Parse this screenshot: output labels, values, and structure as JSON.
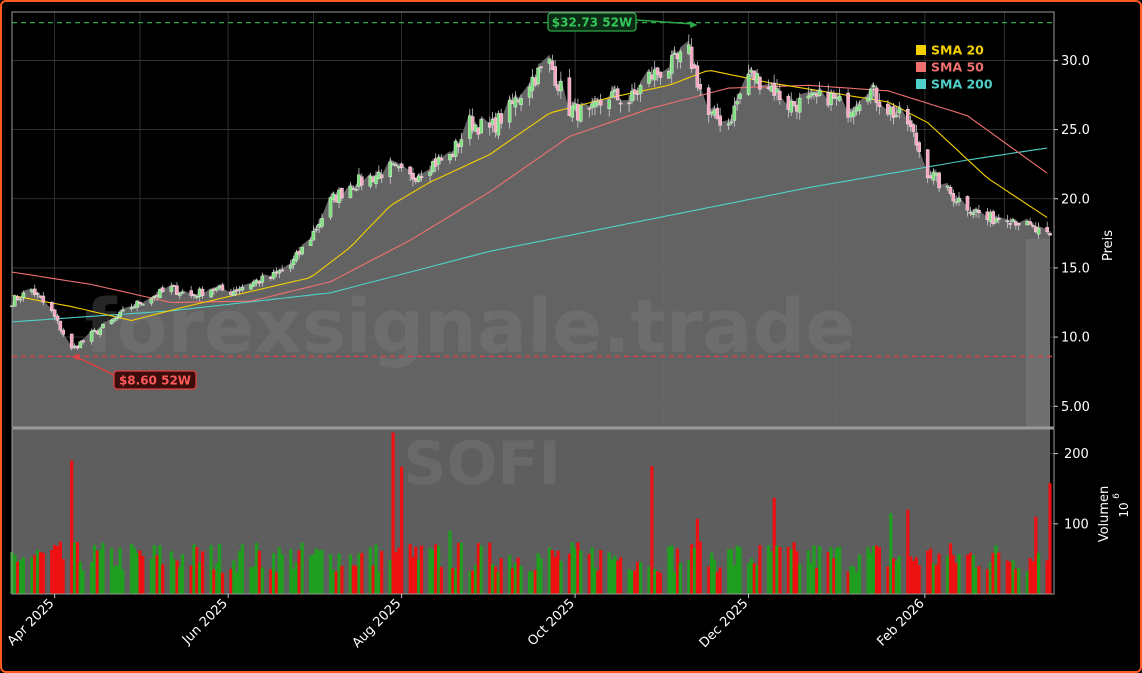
{
  "chart_data": {
    "type": "candlestick",
    "ticker": "SOFI",
    "watermark": "forexsignale.trade",
    "ylabel_price": "Preis",
    "ylabel_volume": "Volumen",
    "volume_exponent_label": "10",
    "volume_exponent_sup": "6",
    "price_yticks": [
      "5.00",
      "10.0",
      "15.0",
      "20.0",
      "25.0",
      "30.0"
    ],
    "price_ytick_values": [
      5,
      10,
      15,
      20,
      25,
      30
    ],
    "price_ylim": [
      3.5,
      33.5
    ],
    "volume_yticks": [
      "100",
      "200"
    ],
    "volume_ytick_values": [
      100,
      200
    ],
    "volume_ylim": [
      0,
      235
    ],
    "x_tick_labels": [
      "Apr 2025",
      "Jun 2025",
      "Aug 2025",
      "Oct 2025",
      "Dec 2025",
      "Feb 2026"
    ],
    "x_tick_dates": [
      "2025-04-01",
      "2025-06-01",
      "2025-08-01",
      "2025-10-01",
      "2025-12-01",
      "2026-02-01"
    ],
    "date_range": [
      "2025-03-17",
      "2026-03-17"
    ],
    "legend": [
      {
        "label": "SMA 20",
        "color": "#f5d000"
      },
      {
        "label": "SMA 50",
        "color": "#f07070"
      },
      {
        "label": "SMA 200",
        "color": "#4fd0c8"
      }
    ],
    "high_52w": {
      "label": "$32.73 52W",
      "value": 32.73,
      "date": "2025-11-13",
      "color": "#2ea84a"
    },
    "low_52w": {
      "label": "$8.60 52W",
      "value": 8.6,
      "date": "2025-04-07",
      "color": "#e04040"
    },
    "last_price": 17.1,
    "close_points": [
      [
        "2025-03-17",
        12.6
      ],
      [
        "2025-03-24",
        13.4
      ],
      [
        "2025-03-31",
        11.8
      ],
      [
        "2025-04-07",
        9.1
      ],
      [
        "2025-04-14",
        10.2
      ],
      [
        "2025-04-21",
        11.1
      ],
      [
        "2025-04-28",
        12.2
      ],
      [
        "2025-05-05",
        12.9
      ],
      [
        "2025-05-12",
        13.5
      ],
      [
        "2025-05-19",
        13.0
      ],
      [
        "2025-05-26",
        13.5
      ],
      [
        "2025-06-02",
        13.3
      ],
      [
        "2025-06-09",
        13.9
      ],
      [
        "2025-06-16",
        14.3
      ],
      [
        "2025-06-23",
        15.2
      ],
      [
        "2025-06-30",
        17.2
      ],
      [
        "2025-07-07",
        19.8
      ],
      [
        "2025-07-14",
        21.0
      ],
      [
        "2025-07-21",
        21.5
      ],
      [
        "2025-07-28",
        22.2
      ],
      [
        "2025-08-04",
        21.5
      ],
      [
        "2025-08-11",
        22.5
      ],
      [
        "2025-08-18",
        23.0
      ],
      [
        "2025-08-25",
        25.5
      ],
      [
        "2025-09-01",
        25.0
      ],
      [
        "2025-09-08",
        26.5
      ],
      [
        "2025-09-15",
        28.5
      ],
      [
        "2025-09-22",
        29.8
      ],
      [
        "2025-09-29",
        26.5
      ],
      [
        "2025-10-06",
        26.0
      ],
      [
        "2025-10-13",
        27.5
      ],
      [
        "2025-10-20",
        27.0
      ],
      [
        "2025-10-27",
        28.8
      ],
      [
        "2025-11-03",
        29.5
      ],
      [
        "2025-11-10",
        30.5
      ],
      [
        "2025-11-17",
        26.0
      ],
      [
        "2025-11-24",
        25.5
      ],
      [
        "2025-12-01",
        29.0
      ],
      [
        "2025-12-08",
        28.3
      ],
      [
        "2025-12-15",
        26.8
      ],
      [
        "2025-12-22",
        27.0
      ],
      [
        "2025-12-29",
        27.4
      ],
      [
        "2026-01-05",
        26.5
      ],
      [
        "2026-01-12",
        28.0
      ],
      [
        "2026-01-19",
        26.5
      ],
      [
        "2026-01-26",
        25.5
      ],
      [
        "2026-02-02",
        22.0
      ],
      [
        "2026-02-09",
        20.5
      ],
      [
        "2026-02-16",
        19.5
      ],
      [
        "2026-02-23",
        18.5
      ],
      [
        "2026-03-02",
        18.8
      ],
      [
        "2026-03-09",
        18.0
      ],
      [
        "2026-03-17",
        17.1
      ]
    ],
    "sma20_points": [
      [
        "2025-03-17",
        13.0
      ],
      [
        "2025-04-07",
        12.2
      ],
      [
        "2025-04-28",
        11.2
      ],
      [
        "2025-05-19",
        12.3
      ],
      [
        "2025-06-09",
        13.3
      ],
      [
        "2025-06-30",
        14.3
      ],
      [
        "2025-07-14",
        16.5
      ],
      [
        "2025-07-28",
        19.5
      ],
      [
        "2025-08-11",
        21.2
      ],
      [
        "2025-09-01",
        23.2
      ],
      [
        "2025-09-22",
        26.2
      ],
      [
        "2025-10-13",
        27.3
      ],
      [
        "2025-11-03",
        28.2
      ],
      [
        "2025-11-17",
        29.3
      ],
      [
        "2025-12-08",
        28.4
      ],
      [
        "2025-12-29",
        27.7
      ],
      [
        "2026-01-19",
        27.0
      ],
      [
        "2026-02-02",
        25.5
      ],
      [
        "2026-02-23",
        21.5
      ],
      [
        "2026-03-17",
        18.5
      ]
    ],
    "sma50_points": [
      [
        "2025-03-17",
        14.7
      ],
      [
        "2025-04-14",
        13.8
      ],
      [
        "2025-05-12",
        12.5
      ],
      [
        "2025-06-09",
        12.6
      ],
      [
        "2025-07-07",
        14.0
      ],
      [
        "2025-08-04",
        17.0
      ],
      [
        "2025-09-01",
        20.5
      ],
      [
        "2025-09-29",
        24.5
      ],
      [
        "2025-10-27",
        26.5
      ],
      [
        "2025-11-24",
        28.0
      ],
      [
        "2025-12-22",
        28.2
      ],
      [
        "2026-01-19",
        27.8
      ],
      [
        "2026-02-16",
        26.0
      ],
      [
        "2026-03-17",
        21.7
      ]
    ],
    "sma200_points": [
      [
        "2025-03-17",
        11.1
      ],
      [
        "2025-05-12",
        11.9
      ],
      [
        "2025-07-07",
        13.2
      ],
      [
        "2025-09-01",
        16.2
      ],
      [
        "2025-10-27",
        18.5
      ],
      [
        "2025-12-22",
        20.8
      ],
      [
        "2026-02-16",
        22.8
      ],
      [
        "2026-03-17",
        23.7
      ]
    ],
    "volume_peaks": [
      [
        "2025-04-07",
        190
      ],
      [
        "2025-07-29",
        230
      ],
      [
        "2025-08-01",
        181
      ],
      [
        "2025-08-18",
        90
      ],
      [
        "2025-10-28",
        182
      ],
      [
        "2025-11-13",
        107
      ],
      [
        "2025-12-10",
        137
      ],
      [
        "2026-01-20",
        115
      ],
      [
        "2026-01-26",
        120
      ],
      [
        "2026-03-12",
        110
      ],
      [
        "2026-03-17",
        158
      ]
    ]
  }
}
